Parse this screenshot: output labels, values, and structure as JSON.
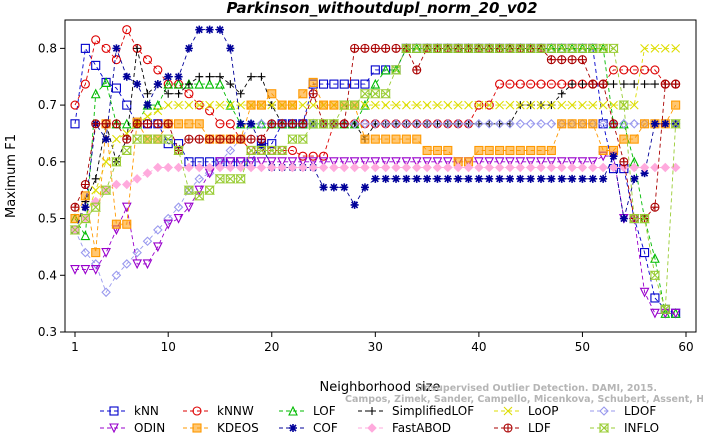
{
  "chart_data": {
    "type": "line",
    "title": "Parkinson_withoutdupl_norm_20_v02",
    "xlabel": "Neighborhood size",
    "ylabel": "Maximum F1",
    "xlim": [
      1,
      60
    ],
    "ylim": [
      0.3,
      0.85
    ],
    "xticks": [
      1,
      10,
      20,
      30,
      40,
      50,
      60
    ],
    "yticks": [
      0.3,
      0.4,
      0.5,
      0.6,
      0.7,
      0.8
    ],
    "grid": false,
    "legend_position": "bottom",
    "watermark": [
      "Unsupervised Outlier Detection. DAMI, 2015.",
      "Campos, Zimek, Sander, Campello, Micenkova, Schubert, Assent, Houle"
    ],
    "series": [
      {
        "name": "kNN",
        "color": "#0000cc",
        "marker": "square",
        "dash": "4,3",
        "values": [
          0.667,
          0.8,
          0.77,
          0.74,
          0.73,
          0.7,
          0.667,
          0.667,
          0.667,
          0.632,
          0.632,
          0.6,
          0.6,
          0.6,
          0.6,
          0.6,
          0.6,
          0.6,
          0.632,
          0.632,
          0.667,
          0.667,
          0.667,
          0.737,
          0.737,
          0.737,
          0.737,
          0.737,
          0.737,
          0.762,
          0.762,
          0.762,
          0.8,
          0.8,
          0.8,
          0.8,
          0.8,
          0.8,
          0.8,
          0.8,
          0.8,
          0.8,
          0.8,
          0.8,
          0.8,
          0.8,
          0.8,
          0.8,
          0.8,
          0.8,
          0.8,
          0.667,
          0.588,
          0.588,
          0.5,
          0.44,
          0.36,
          0.34,
          0.333
        ]
      },
      {
        "name": "kNNW",
        "color": "#dd0000",
        "marker": "circle",
        "dash": "4,3",
        "values": [
          0.7,
          0.737,
          0.815,
          0.8,
          0.78,
          0.833,
          0.8,
          0.78,
          0.762,
          0.737,
          0.737,
          0.72,
          0.7,
          0.69,
          0.667,
          0.667,
          0.64,
          0.62,
          0.62,
          0.62,
          0.62,
          0.62,
          0.61,
          0.61,
          0.61,
          0.667,
          0.667,
          0.667,
          0.667,
          0.667,
          0.667,
          0.667,
          0.667,
          0.667,
          0.667,
          0.667,
          0.667,
          0.667,
          0.667,
          0.7,
          0.7,
          0.737,
          0.737,
          0.737,
          0.737,
          0.737,
          0.737,
          0.737,
          0.737,
          0.737,
          0.737,
          0.737,
          0.762,
          0.762,
          0.762,
          0.762,
          0.762,
          0.737,
          0.737
        ]
      },
      {
        "name": "LOF",
        "color": "#00bb00",
        "marker": "triangle",
        "dash": "4,3",
        "values": [
          0.5,
          0.47,
          0.72,
          0.74,
          0.667,
          0.667,
          0.667,
          0.7,
          0.7,
          0.737,
          0.737,
          0.737,
          0.737,
          0.737,
          0.737,
          0.7,
          0.667,
          0.667,
          0.667,
          0.667,
          0.667,
          0.667,
          0.667,
          0.667,
          0.667,
          0.667,
          0.667,
          0.667,
          0.7,
          0.737,
          0.762,
          0.762,
          0.8,
          0.8,
          0.8,
          0.8,
          0.8,
          0.8,
          0.8,
          0.8,
          0.8,
          0.8,
          0.8,
          0.8,
          0.8,
          0.8,
          0.8,
          0.8,
          0.8,
          0.8,
          0.8,
          0.8,
          0.667,
          0.667,
          0.6,
          0.5,
          0.43,
          0.333,
          0.333
        ]
      },
      {
        "name": "SimplifiedLOF",
        "color": "#000000",
        "marker": "plus",
        "dash": "4,3",
        "values": [
          0.48,
          0.53,
          0.57,
          0.667,
          0.6,
          0.64,
          0.8,
          0.72,
          0.737,
          0.72,
          0.72,
          0.737,
          0.75,
          0.75,
          0.75,
          0.737,
          0.72,
          0.75,
          0.75,
          0.7,
          0.667,
          0.667,
          0.667,
          0.667,
          0.667,
          0.667,
          0.667,
          0.667,
          0.64,
          0.667,
          0.667,
          0.667,
          0.667,
          0.667,
          0.667,
          0.667,
          0.667,
          0.667,
          0.667,
          0.667,
          0.667,
          0.667,
          0.667,
          0.7,
          0.7,
          0.7,
          0.7,
          0.72,
          0.737,
          0.737,
          0.737,
          0.737,
          0.737,
          0.737,
          0.737,
          0.737,
          0.737,
          0.737,
          0.737
        ]
      },
      {
        "name": "LoOP",
        "color": "#dddd00",
        "marker": "x",
        "dash": "4,3",
        "values": [
          0.48,
          0.5,
          0.55,
          0.6,
          0.64,
          0.65,
          0.667,
          0.68,
          0.69,
          0.7,
          0.7,
          0.7,
          0.7,
          0.7,
          0.7,
          0.7,
          0.7,
          0.7,
          0.7,
          0.7,
          0.7,
          0.7,
          0.7,
          0.7,
          0.7,
          0.7,
          0.7,
          0.7,
          0.7,
          0.7,
          0.7,
          0.7,
          0.7,
          0.7,
          0.7,
          0.7,
          0.7,
          0.7,
          0.7,
          0.7,
          0.7,
          0.7,
          0.7,
          0.7,
          0.7,
          0.7,
          0.7,
          0.7,
          0.7,
          0.7,
          0.7,
          0.7,
          0.7,
          0.7,
          0.7,
          0.8,
          0.8,
          0.8,
          0.8
        ]
      },
      {
        "name": "LDOF",
        "color": "#9999ee",
        "marker": "diamond",
        "dash": "4,3",
        "values": [
          0.48,
          0.44,
          0.42,
          0.37,
          0.4,
          0.42,
          0.44,
          0.46,
          0.48,
          0.5,
          0.52,
          0.55,
          0.57,
          0.58,
          0.6,
          0.62,
          0.64,
          0.667,
          0.667,
          0.667,
          0.667,
          0.667,
          0.667,
          0.667,
          0.667,
          0.667,
          0.667,
          0.667,
          0.667,
          0.667,
          0.667,
          0.667,
          0.667,
          0.667,
          0.667,
          0.667,
          0.667,
          0.667,
          0.667,
          0.667,
          0.667,
          0.667,
          0.667,
          0.667,
          0.667,
          0.667,
          0.667,
          0.667,
          0.667,
          0.667,
          0.667,
          0.667,
          0.667,
          0.667,
          0.667,
          0.667,
          0.667,
          0.667,
          0.667
        ]
      },
      {
        "name": "ODIN",
        "color": "#9900cc",
        "marker": "triangle-down",
        "dash": "4,3",
        "values": [
          0.41,
          0.41,
          0.41,
          0.44,
          0.48,
          0.52,
          0.42,
          0.42,
          0.45,
          0.49,
          0.5,
          0.52,
          0.55,
          0.58,
          0.6,
          0.6,
          0.6,
          0.6,
          0.6,
          0.6,
          0.6,
          0.6,
          0.6,
          0.6,
          0.6,
          0.6,
          0.6,
          0.6,
          0.6,
          0.6,
          0.6,
          0.6,
          0.6,
          0.6,
          0.6,
          0.6,
          0.6,
          0.6,
          0.6,
          0.6,
          0.6,
          0.6,
          0.6,
          0.6,
          0.6,
          0.6,
          0.6,
          0.6,
          0.6,
          0.6,
          0.6,
          0.61,
          0.61,
          0.5,
          0.5,
          0.37,
          0.333,
          0.333,
          0.333
        ]
      },
      {
        "name": "KDEOS",
        "color": "#ff9900",
        "marker": "square-filled",
        "dash": "4,3",
        "values": [
          0.5,
          0.54,
          0.44,
          0.667,
          0.49,
          0.49,
          0.67,
          0.64,
          0.64,
          0.667,
          0.667,
          0.667,
          0.667,
          0.64,
          0.64,
          0.64,
          0.64,
          0.7,
          0.7,
          0.72,
          0.7,
          0.7,
          0.72,
          0.74,
          0.7,
          0.7,
          0.7,
          0.7,
          0.64,
          0.64,
          0.64,
          0.64,
          0.64,
          0.64,
          0.62,
          0.62,
          0.62,
          0.6,
          0.6,
          0.62,
          0.62,
          0.62,
          0.62,
          0.62,
          0.62,
          0.62,
          0.62,
          0.667,
          0.667,
          0.667,
          0.667,
          0.62,
          0.62,
          0.64,
          0.64,
          0.667,
          0.667,
          0.667,
          0.7
        ]
      },
      {
        "name": "COF",
        "color": "#000099",
        "marker": "star",
        "dash": "4,3",
        "values": [
          0.48,
          0.52,
          0.667,
          0.64,
          0.8,
          0.75,
          0.737,
          0.7,
          0.737,
          0.75,
          0.75,
          0.8,
          0.833,
          0.833,
          0.833,
          0.8,
          0.667,
          0.667,
          0.63,
          0.59,
          0.59,
          0.59,
          0.59,
          0.59,
          0.555,
          0.555,
          0.555,
          0.524,
          0.555,
          0.57,
          0.57,
          0.57,
          0.57,
          0.57,
          0.57,
          0.57,
          0.57,
          0.57,
          0.57,
          0.57,
          0.57,
          0.57,
          0.57,
          0.57,
          0.57,
          0.57,
          0.57,
          0.57,
          0.57,
          0.57,
          0.57,
          0.57,
          0.61,
          0.5,
          0.57,
          0.58,
          0.667,
          0.667,
          0.667
        ]
      },
      {
        "name": "FastABOD",
        "color": "#ffaadd",
        "marker": "diamond-filled",
        "dash": "4,3",
        "values": [
          0.48,
          0.5,
          0.53,
          0.55,
          0.56,
          0.56,
          0.57,
          0.58,
          0.59,
          0.59,
          0.59,
          0.59,
          0.59,
          0.59,
          0.59,
          0.59,
          0.59,
          0.59,
          0.59,
          0.59,
          0.59,
          0.59,
          0.59,
          0.59,
          0.59,
          0.59,
          0.59,
          0.59,
          0.59,
          0.59,
          0.59,
          0.59,
          0.59,
          0.59,
          0.59,
          0.59,
          0.59,
          0.59,
          0.59,
          0.59,
          0.59,
          0.59,
          0.59,
          0.59,
          0.59,
          0.59,
          0.59,
          0.59,
          0.59,
          0.59,
          0.59,
          0.59,
          0.59,
          0.59,
          0.59,
          0.59,
          0.59,
          0.59,
          0.59
        ]
      },
      {
        "name": "LDF",
        "color": "#aa0000",
        "marker": "circle-plus",
        "dash": "4,3",
        "values": [
          0.52,
          0.56,
          0.667,
          0.667,
          0.667,
          0.64,
          0.667,
          0.667,
          0.667,
          0.667,
          0.62,
          0.64,
          0.64,
          0.64,
          0.64,
          0.64,
          0.64,
          0.64,
          0.64,
          0.667,
          0.667,
          0.667,
          0.667,
          0.72,
          0.667,
          0.667,
          0.667,
          0.8,
          0.8,
          0.8,
          0.8,
          0.8,
          0.8,
          0.762,
          0.8,
          0.8,
          0.8,
          0.8,
          0.8,
          0.8,
          0.8,
          0.8,
          0.8,
          0.8,
          0.8,
          0.8,
          0.78,
          0.78,
          0.78,
          0.78,
          0.737,
          0.737,
          0.667,
          0.6,
          0.5,
          0.5,
          0.52,
          0.737,
          0.737
        ]
      },
      {
        "name": "INFLO",
        "color": "#99cc33",
        "marker": "hourglass",
        "dash": "4,3",
        "values": [
          0.48,
          0.5,
          0.52,
          0.55,
          0.6,
          0.62,
          0.64,
          0.64,
          0.64,
          0.64,
          0.62,
          0.55,
          0.54,
          0.55,
          0.57,
          0.57,
          0.57,
          0.62,
          0.62,
          0.62,
          0.62,
          0.64,
          0.64,
          0.667,
          0.667,
          0.667,
          0.7,
          0.7,
          0.72,
          0.72,
          0.72,
          0.762,
          0.8,
          0.8,
          0.8,
          0.8,
          0.8,
          0.8,
          0.8,
          0.8,
          0.8,
          0.8,
          0.8,
          0.8,
          0.8,
          0.8,
          0.8,
          0.8,
          0.8,
          0.8,
          0.8,
          0.8,
          0.8,
          0.7,
          0.5,
          0.5,
          0.4,
          0.34,
          0.667
        ]
      }
    ]
  }
}
